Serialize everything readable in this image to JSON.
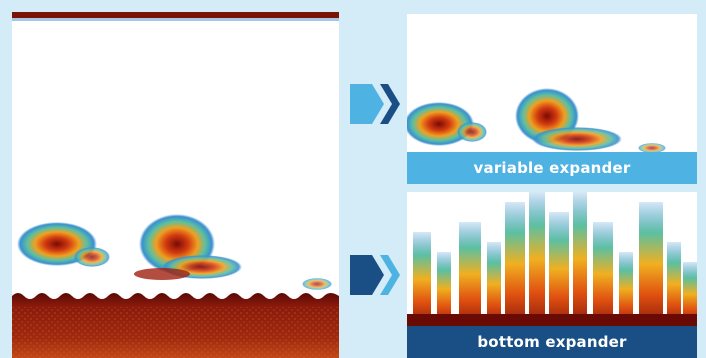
{
  "captions": {
    "variable": "variable expander",
    "bottom": "bottom expander"
  },
  "colors": {
    "background": "#d3ecf8",
    "variable_caption": "#4eb2e2",
    "bottom_caption": "#1a4f86",
    "arrow_light": "#4eb2e2",
    "arrow_dark": "#1a4f86",
    "seabed": "#8a1a0c"
  }
}
